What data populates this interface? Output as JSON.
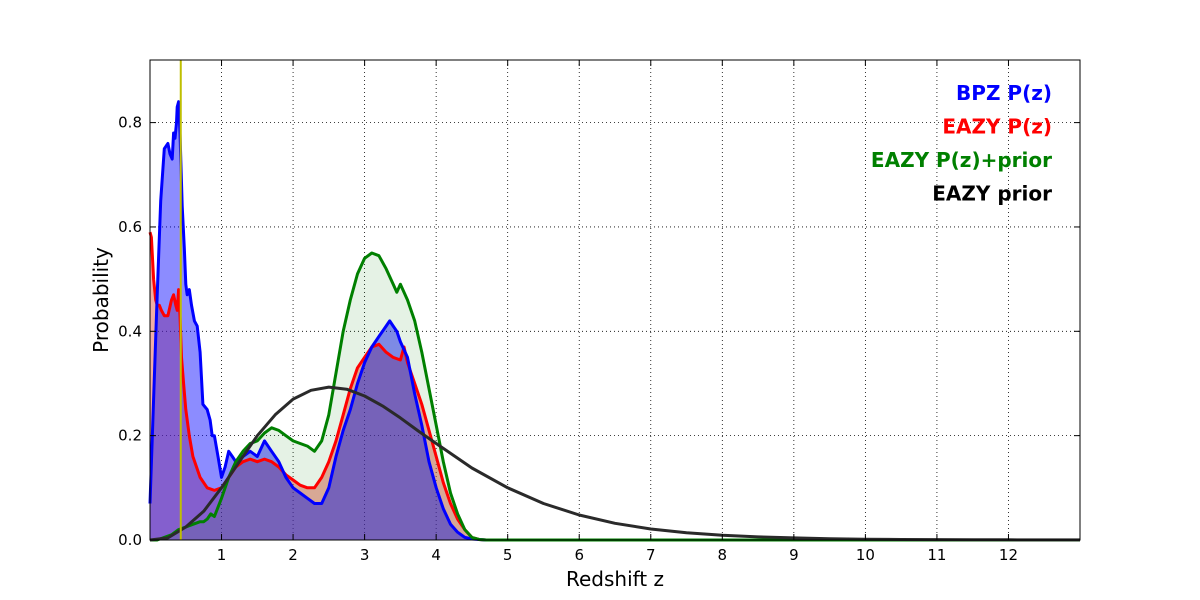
{
  "chart_data": {
    "type": "area",
    "title": "",
    "xlabel": "Redshift z",
    "ylabel": "Probability",
    "xlim": [
      0,
      13
    ],
    "ylim": [
      0,
      0.92
    ],
    "grid": true,
    "legend_position": "top-right",
    "x_ticks": [
      1,
      2,
      3,
      4,
      5,
      6,
      7,
      8,
      9,
      10,
      11,
      12
    ],
    "y_ticks": [
      0.0,
      0.2,
      0.4,
      0.6,
      0.8
    ],
    "x_tick_labels": [
      "1",
      "2",
      "3",
      "4",
      "5",
      "6",
      "7",
      "8",
      "9",
      "10",
      "11",
      "12"
    ],
    "y_tick_labels": [
      "0.0",
      "0.2",
      "0.4",
      "0.6",
      "0.8"
    ],
    "vertical_line": {
      "x": 0.43,
      "color": "#bfbf00"
    },
    "series": [
      {
        "name": "EAZY P(z)",
        "color": "#ff0000",
        "fill": "#e04a3a",
        "fill_opacity": 0.45,
        "x": [
          0,
          0.02,
          0.05,
          0.08,
          0.1,
          0.13,
          0.16,
          0.2,
          0.25,
          0.3,
          0.33,
          0.36,
          0.38,
          0.4,
          0.42,
          0.44,
          0.47,
          0.5,
          0.55,
          0.6,
          0.7,
          0.8,
          0.9,
          1.0,
          1.1,
          1.2,
          1.3,
          1.4,
          1.5,
          1.6,
          1.7,
          1.8,
          1.9,
          2.0,
          2.1,
          2.2,
          2.3,
          2.4,
          2.5,
          2.6,
          2.7,
          2.8,
          2.9,
          3.0,
          3.1,
          3.2,
          3.3,
          3.4,
          3.5,
          3.55,
          3.6,
          3.7,
          3.8,
          3.9,
          4.0,
          4.1,
          4.2,
          4.3,
          4.4,
          4.5,
          4.6,
          4.7,
          13
        ],
        "y": [
          0.59,
          0.58,
          0.5,
          0.46,
          0.45,
          0.45,
          0.44,
          0.43,
          0.43,
          0.46,
          0.47,
          0.45,
          0.44,
          0.48,
          0.43,
          0.35,
          0.3,
          0.25,
          0.2,
          0.16,
          0.12,
          0.1,
          0.095,
          0.1,
          0.12,
          0.14,
          0.15,
          0.155,
          0.15,
          0.155,
          0.15,
          0.14,
          0.125,
          0.115,
          0.105,
          0.1,
          0.1,
          0.12,
          0.15,
          0.19,
          0.24,
          0.29,
          0.33,
          0.35,
          0.37,
          0.375,
          0.36,
          0.35,
          0.345,
          0.37,
          0.34,
          0.3,
          0.26,
          0.21,
          0.16,
          0.11,
          0.07,
          0.04,
          0.02,
          0.005,
          0.001,
          0,
          0
        ]
      },
      {
        "name": "BPZ P(z)",
        "color": "#0000ff",
        "fill": "#0000ff",
        "fill_opacity": 0.45,
        "x": [
          0,
          0.05,
          0.1,
          0.15,
          0.2,
          0.25,
          0.28,
          0.31,
          0.33,
          0.35,
          0.37,
          0.38,
          0.4,
          0.42,
          0.45,
          0.48,
          0.5,
          0.52,
          0.55,
          0.58,
          0.62,
          0.66,
          0.7,
          0.74,
          0.8,
          0.84,
          0.87,
          0.9,
          0.95,
          1.0,
          1.05,
          1.1,
          1.15,
          1.2,
          1.3,
          1.4,
          1.5,
          1.6,
          1.7,
          1.8,
          1.9,
          2.0,
          2.1,
          2.2,
          2.3,
          2.4,
          2.5,
          2.6,
          2.7,
          2.8,
          2.9,
          3.0,
          3.1,
          3.2,
          3.3,
          3.35,
          3.4,
          3.45,
          3.5,
          3.6,
          3.7,
          3.8,
          3.9,
          4.0,
          4.1,
          4.2,
          4.3,
          4.4,
          4.5,
          4.6,
          4.7,
          12.0,
          13
        ],
        "y": [
          0.07,
          0.27,
          0.47,
          0.65,
          0.75,
          0.76,
          0.74,
          0.73,
          0.78,
          0.77,
          0.8,
          0.83,
          0.84,
          0.78,
          0.64,
          0.56,
          0.49,
          0.47,
          0.48,
          0.45,
          0.42,
          0.41,
          0.36,
          0.26,
          0.25,
          0.23,
          0.2,
          0.2,
          0.16,
          0.12,
          0.14,
          0.17,
          0.16,
          0.15,
          0.16,
          0.17,
          0.16,
          0.19,
          0.17,
          0.15,
          0.12,
          0.1,
          0.09,
          0.08,
          0.07,
          0.07,
          0.1,
          0.16,
          0.21,
          0.25,
          0.3,
          0.34,
          0.37,
          0.39,
          0.41,
          0.42,
          0.41,
          0.4,
          0.38,
          0.35,
          0.28,
          0.22,
          0.15,
          0.1,
          0.06,
          0.03,
          0.015,
          0.005,
          0.002,
          0.001,
          0,
          0,
          0
        ]
      },
      {
        "name": "EAZY P(z)+prior",
        "color": "#008000",
        "fill": "#008000",
        "fill_opacity": 0.1,
        "x": [
          0,
          0.1,
          0.2,
          0.3,
          0.4,
          0.5,
          0.6,
          0.7,
          0.75,
          0.8,
          0.85,
          0.9,
          1.0,
          1.1,
          1.2,
          1.3,
          1.4,
          1.5,
          1.6,
          1.7,
          1.8,
          1.9,
          2.0,
          2.1,
          2.2,
          2.3,
          2.4,
          2.5,
          2.6,
          2.7,
          2.8,
          2.9,
          3.0,
          3.1,
          3.2,
          3.3,
          3.4,
          3.45,
          3.5,
          3.55,
          3.6,
          3.7,
          3.8,
          3.9,
          4.0,
          4.1,
          4.2,
          4.3,
          4.4,
          4.5,
          4.6,
          4.7,
          13
        ],
        "y": [
          0,
          0,
          0.005,
          0.01,
          0.02,
          0.025,
          0.03,
          0.035,
          0.035,
          0.04,
          0.05,
          0.045,
          0.08,
          0.12,
          0.15,
          0.17,
          0.185,
          0.19,
          0.205,
          0.215,
          0.21,
          0.2,
          0.19,
          0.185,
          0.18,
          0.17,
          0.19,
          0.24,
          0.32,
          0.4,
          0.46,
          0.51,
          0.54,
          0.55,
          0.545,
          0.52,
          0.49,
          0.475,
          0.49,
          0.475,
          0.46,
          0.42,
          0.36,
          0.29,
          0.22,
          0.15,
          0.09,
          0.05,
          0.02,
          0.005,
          0.001,
          0,
          0
        ]
      },
      {
        "name": "EAZY prior",
        "color": "#2a2a2a",
        "fill": "none",
        "fill_opacity": 0,
        "x": [
          0,
          0.25,
          0.5,
          0.75,
          1.0,
          1.25,
          1.5,
          1.75,
          2.0,
          2.25,
          2.5,
          2.75,
          3.0,
          3.25,
          3.5,
          3.75,
          4.0,
          4.5,
          5.0,
          5.5,
          6.0,
          6.5,
          7.0,
          7.5,
          8.0,
          8.5,
          9.0,
          9.5,
          10.0,
          10.5,
          11.0,
          11.5,
          12.0,
          12.5,
          13
        ],
        "y": [
          0,
          0.004,
          0.025,
          0.055,
          0.1,
          0.15,
          0.2,
          0.24,
          0.27,
          0.287,
          0.293,
          0.289,
          0.276,
          0.257,
          0.234,
          0.209,
          0.185,
          0.138,
          0.1,
          0.07,
          0.048,
          0.032,
          0.021,
          0.014,
          0.009,
          0.006,
          0.004,
          0.0025,
          0.0016,
          0.001,
          0.0007,
          0.0004,
          0.0003,
          0.0002,
          0.0001
        ]
      }
    ]
  }
}
